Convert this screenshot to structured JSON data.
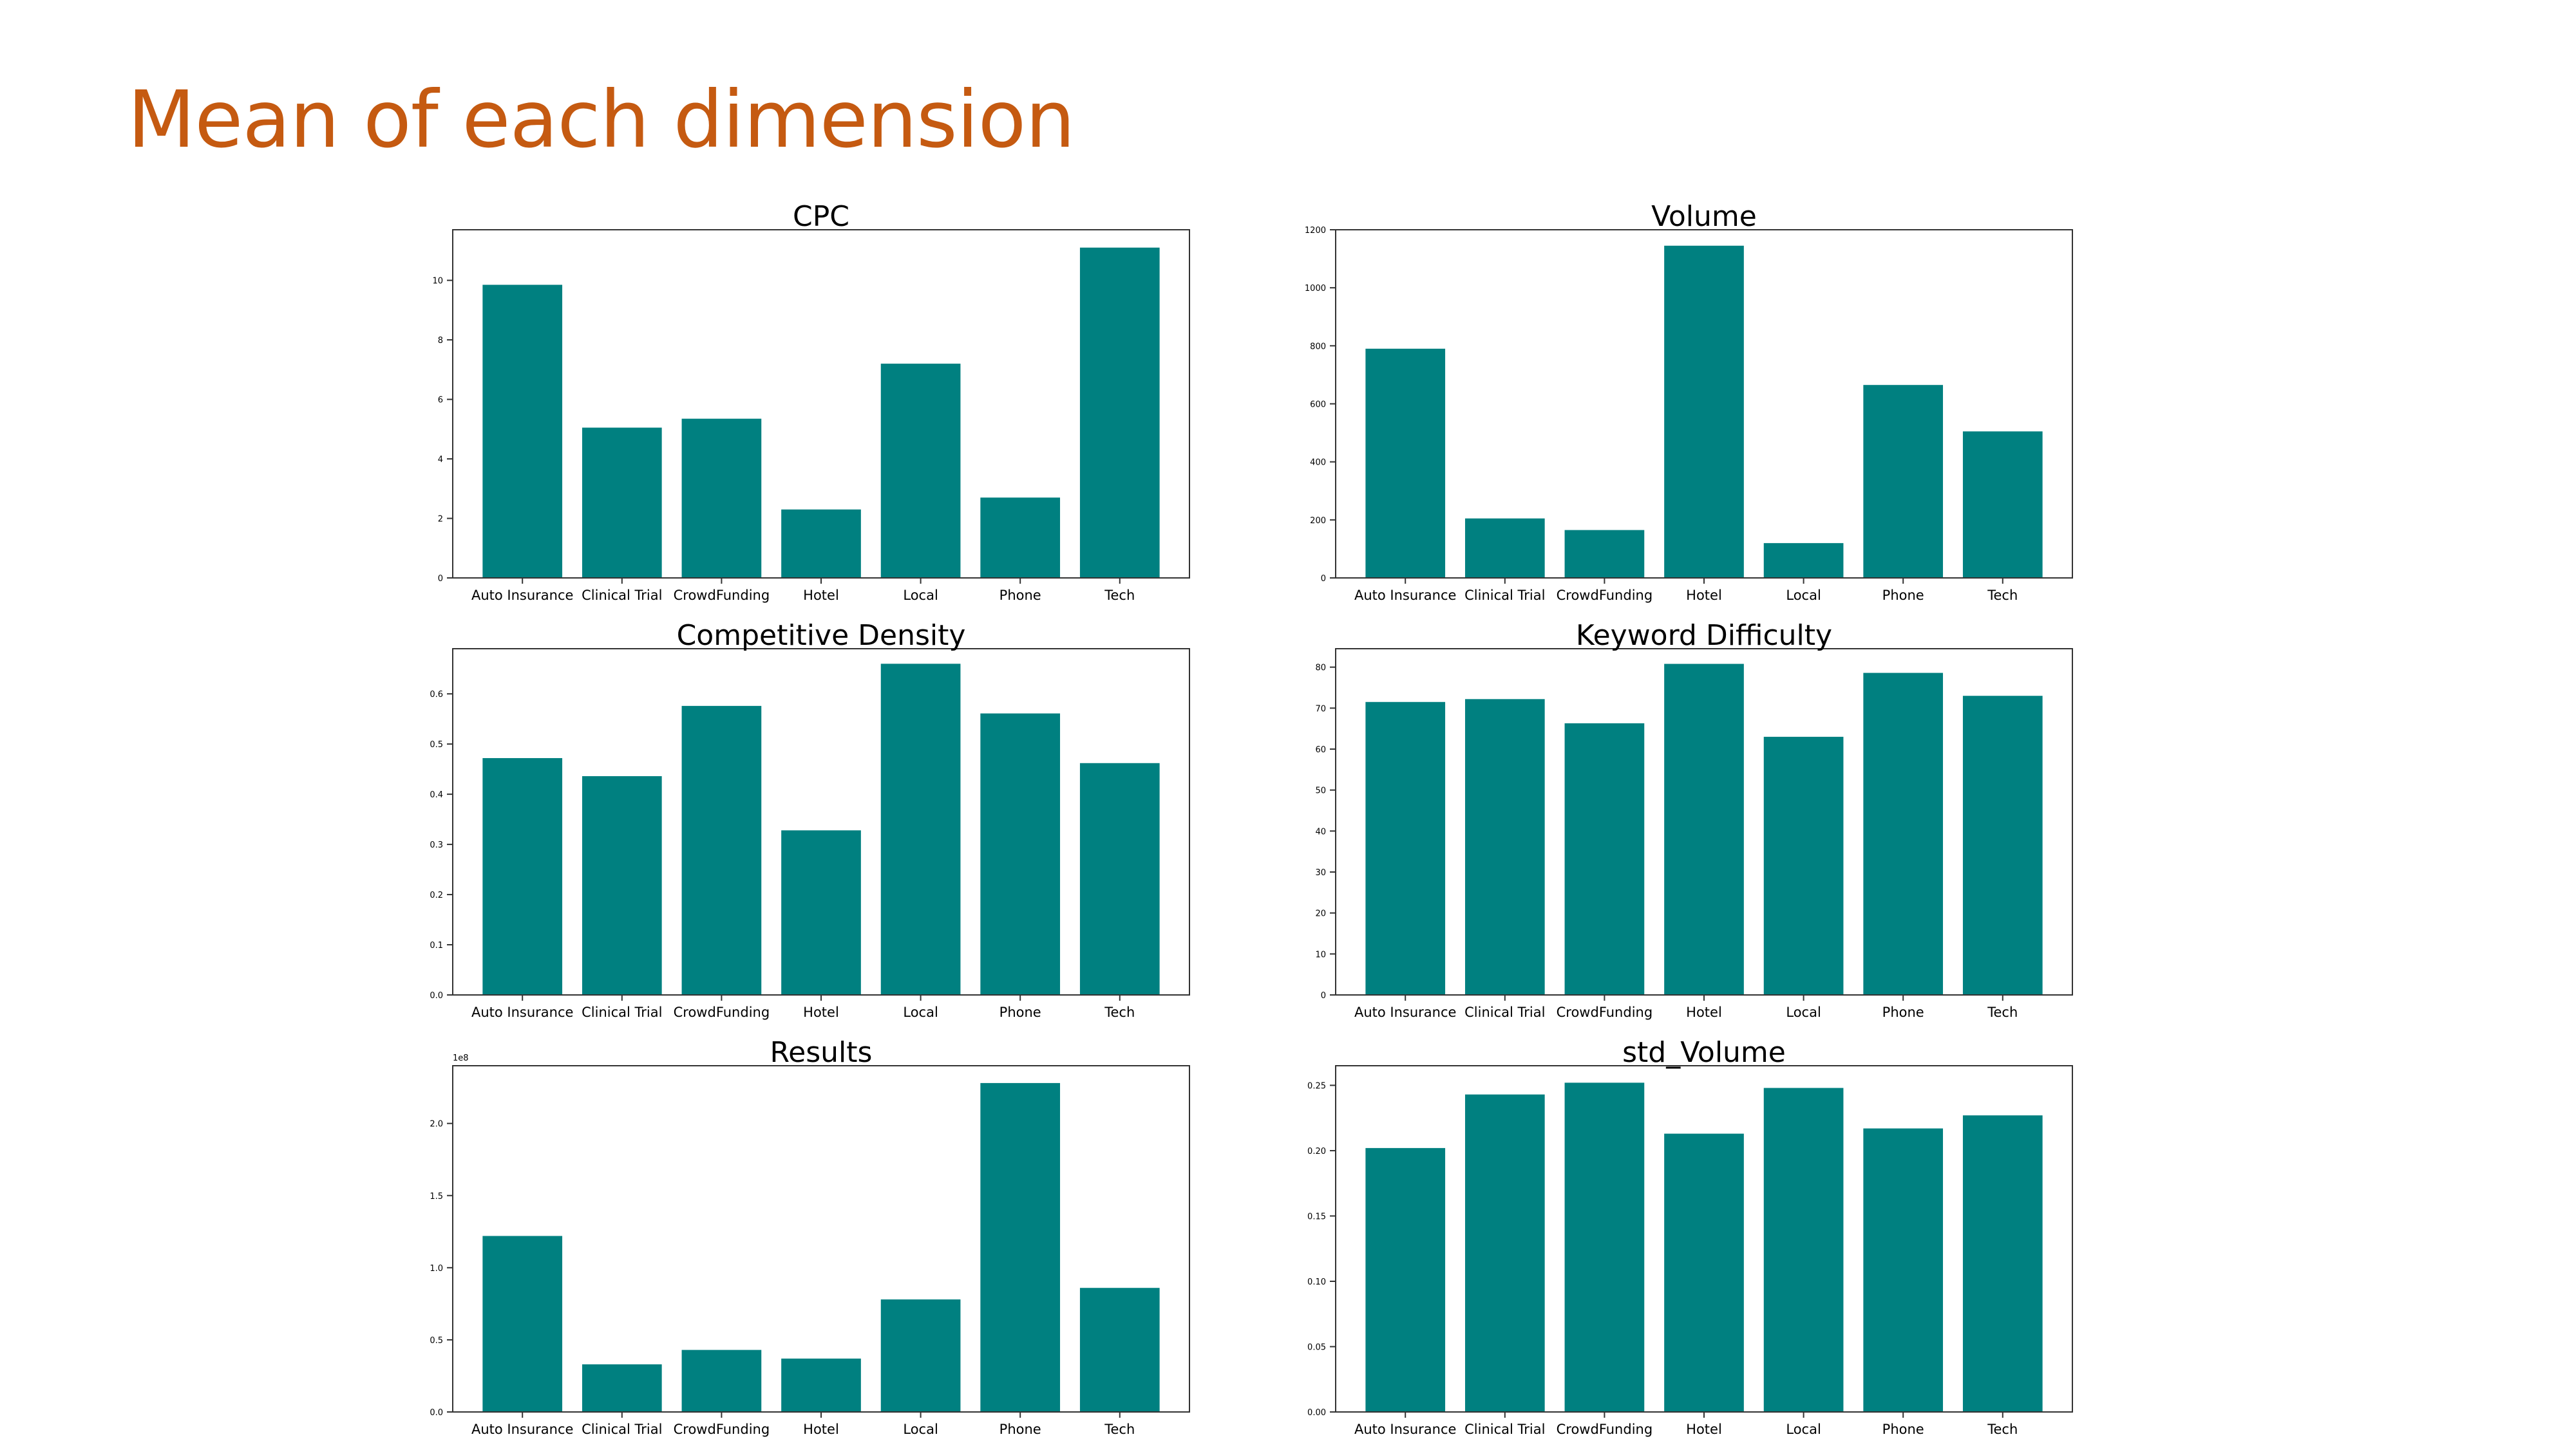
{
  "slide": {
    "title": "Mean of each dimension",
    "bar_color": "#008080",
    "title_color": "#c55a11"
  },
  "chart_data": [
    {
      "type": "bar",
      "title": "CPC",
      "categories": [
        "Auto Insurance",
        "Clinical Trial",
        "CrowdFunding",
        "Hotel",
        "Local",
        "Phone",
        "Tech"
      ],
      "values": [
        9.85,
        5.05,
        5.35,
        2.3,
        7.2,
        2.7,
        11.1
      ],
      "ylim": [
        0,
        11.7
      ],
      "yticks": [
        0,
        2,
        4,
        6,
        8,
        10
      ],
      "ytick_labels": [
        "0",
        "2",
        "4",
        "6",
        "8",
        "10"
      ],
      "offset_label": ""
    },
    {
      "type": "bar",
      "title": "Volume",
      "categories": [
        "Auto Insurance",
        "Clinical Trial",
        "CrowdFunding",
        "Hotel",
        "Local",
        "Phone",
        "Tech"
      ],
      "values": [
        790,
        205,
        165,
        1145,
        120,
        665,
        505
      ],
      "ylim": [
        0,
        1200
      ],
      "yticks": [
        0,
        200,
        400,
        600,
        800,
        1000,
        1200
      ],
      "ytick_labels": [
        "0",
        "200",
        "400",
        "600",
        "800",
        "1000",
        "1200"
      ],
      "offset_label": ""
    },
    {
      "type": "bar",
      "title": "Competitive Density",
      "categories": [
        "Auto Insurance",
        "Clinical Trial",
        "CrowdFunding",
        "Hotel",
        "Local",
        "Phone",
        "Tech"
      ],
      "values": [
        0.472,
        0.436,
        0.576,
        0.328,
        0.66,
        0.561,
        0.462
      ],
      "ylim": [
        0,
        0.69
      ],
      "yticks": [
        0,
        0.1,
        0.2,
        0.3,
        0.4,
        0.5,
        0.6
      ],
      "ytick_labels": [
        "0.0",
        "0.1",
        "0.2",
        "0.3",
        "0.4",
        "0.5",
        "0.6"
      ],
      "offset_label": ""
    },
    {
      "type": "bar",
      "title": "Keyword Difficulty",
      "categories": [
        "Auto Insurance",
        "Clinical Trial",
        "CrowdFunding",
        "Hotel",
        "Local",
        "Phone",
        "Tech"
      ],
      "values": [
        71.5,
        72.2,
        66.3,
        80.8,
        63.0,
        78.6,
        73.0
      ],
      "ylim": [
        0,
        84.5
      ],
      "yticks": [
        0,
        10,
        20,
        30,
        40,
        50,
        60,
        70,
        80
      ],
      "ytick_labels": [
        "0",
        "10",
        "20",
        "30",
        "40",
        "50",
        "60",
        "70",
        "80"
      ],
      "offset_label": ""
    },
    {
      "type": "bar",
      "title": "Results",
      "categories": [
        "Auto Insurance",
        "Clinical Trial",
        "CrowdFunding",
        "Hotel",
        "Local",
        "Phone",
        "Tech"
      ],
      "values": [
        1.22,
        0.33,
        0.43,
        0.37,
        0.78,
        2.28,
        0.86
      ],
      "ylim": [
        0,
        2.4
      ],
      "yticks": [
        0,
        0.5,
        1.0,
        1.5,
        2.0
      ],
      "ytick_labels": [
        "0.0",
        "0.5",
        "1.0",
        "1.5",
        "2.0"
      ],
      "offset_label": "1e8"
    },
    {
      "type": "bar",
      "title": "std_Volume",
      "categories": [
        "Auto Insurance",
        "Clinical Trial",
        "CrowdFunding",
        "Hotel",
        "Local",
        "Phone",
        "Tech"
      ],
      "values": [
        0.202,
        0.243,
        0.252,
        0.213,
        0.248,
        0.217,
        0.227
      ],
      "ylim": [
        0,
        0.265
      ],
      "yticks": [
        0,
        0.05,
        0.1,
        0.15,
        0.2,
        0.25
      ],
      "ytick_labels": [
        "0.00",
        "0.05",
        "0.10",
        "0.15",
        "0.20",
        "0.25"
      ],
      "offset_label": ""
    }
  ]
}
